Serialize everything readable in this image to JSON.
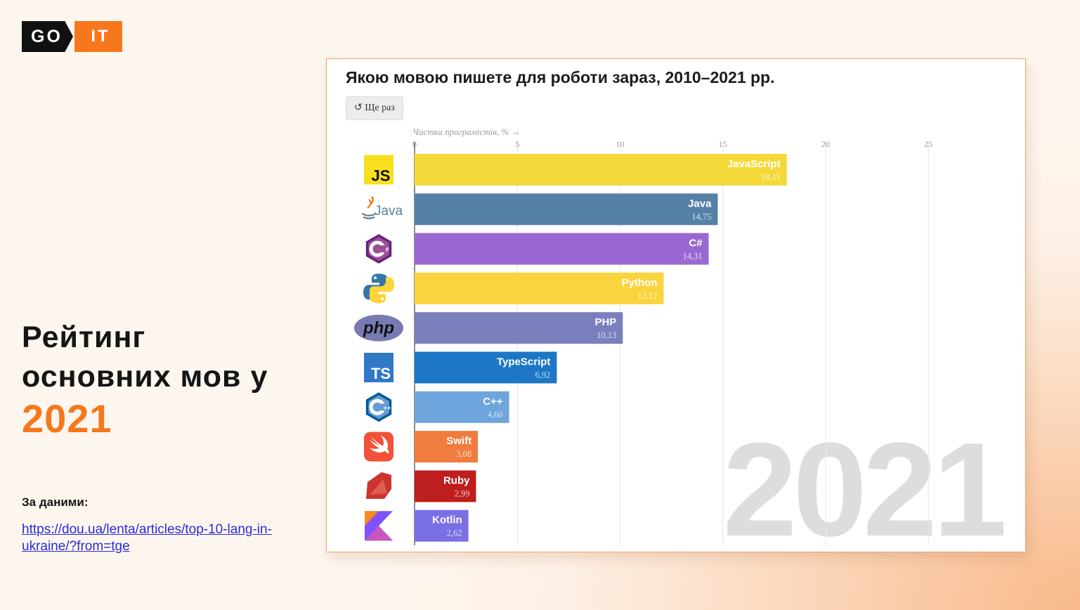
{
  "logo": {
    "left": "GO",
    "right": "IT"
  },
  "headline": {
    "line1": "Рейтинг",
    "line2": "основних мов у",
    "year": "2021"
  },
  "source": {
    "label": "За даними:",
    "link": "https://dou.ua/lenta/articles/top-10-lang-in-ukraine/?from=tge"
  },
  "panel": {
    "replay_label": "↺ Ще раз",
    "watermark_year": "2021"
  },
  "colors": {
    "accent": "#f6771c",
    "text": "#151515",
    "link": "#2b2bd6"
  },
  "chart_data": {
    "type": "bar",
    "orientation": "horizontal",
    "title": "Якою мовою пишете для роботи зараз, 2010–2021 рр.",
    "xlabel": "Частка програмістів, % →",
    "xlim": [
      0,
      28
    ],
    "xticks": [
      0,
      5,
      10,
      15,
      20,
      25
    ],
    "grid": true,
    "categories": [
      "JavaScript",
      "Java",
      "C#",
      "Python",
      "PHP",
      "TypeScript",
      "C++",
      "Swift",
      "Ruby",
      "Kotlin"
    ],
    "values": [
      18.11,
      14.75,
      14.31,
      12.12,
      10.13,
      6.92,
      4.6,
      3.08,
      2.99,
      2.62
    ],
    "value_labels": [
      "18,11",
      "14,75",
      "14,31",
      "12,12",
      "10,13",
      "6,92",
      "4,60",
      "3,08",
      "2,99",
      "2,62"
    ],
    "bar_colors": [
      "#f5d93a",
      "#5581a7",
      "#9a68d3",
      "#f9d43f",
      "#7a7fbd",
      "#1d77c6",
      "#6da5dc",
      "#f07c3e",
      "#be1e1e",
      "#7a6fe3"
    ],
    "icons": [
      "js-logo-icon",
      "java-logo-icon",
      "csharp-logo-icon",
      "python-logo-icon",
      "php-logo-icon",
      "typescript-logo-icon",
      "cpp-logo-icon",
      "swift-logo-icon",
      "ruby-logo-icon",
      "kotlin-logo-icon"
    ]
  }
}
